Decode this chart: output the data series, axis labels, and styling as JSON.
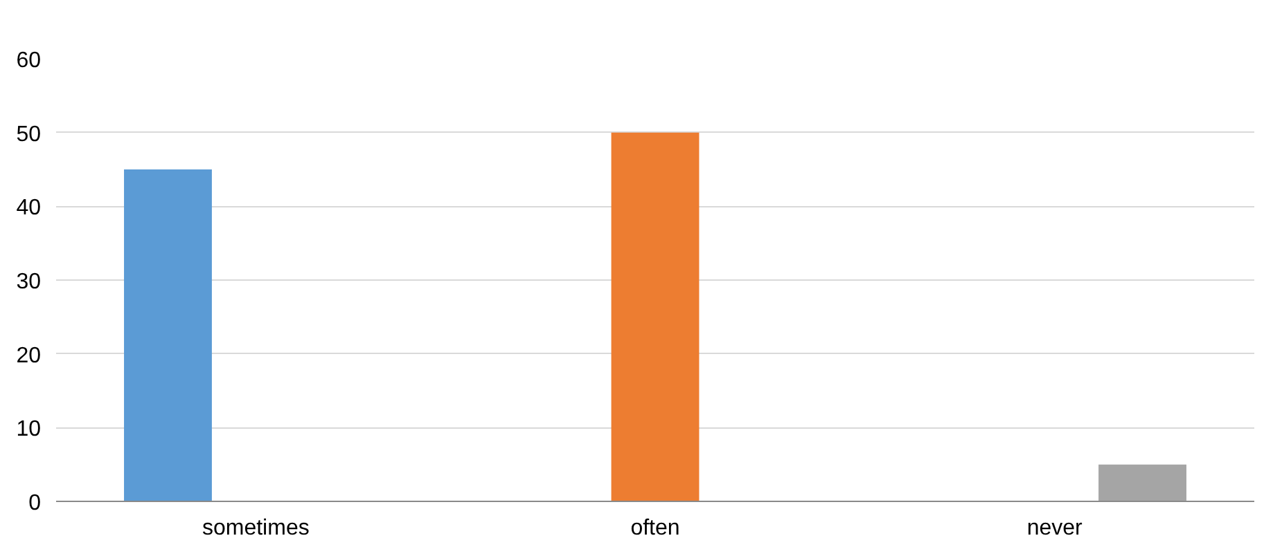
{
  "chart_data": {
    "type": "bar",
    "categories": [
      "sometimes",
      "often",
      "never"
    ],
    "series": [
      {
        "color": "#5b9bd5",
        "values": [
          45,
          null,
          null
        ]
      },
      {
        "color": "#ed7d31",
        "values": [
          null,
          50,
          null
        ]
      },
      {
        "color": "#a5a5a5",
        "values": [
          null,
          null,
          5
        ]
      }
    ],
    "ylim": [
      0,
      60
    ],
    "yticks": [
      0,
      10,
      20,
      30,
      40,
      50,
      60
    ],
    "grid": "y"
  }
}
